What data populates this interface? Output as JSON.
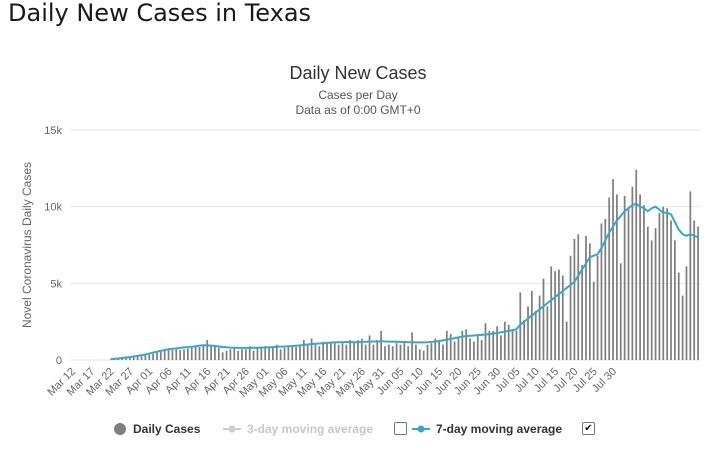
{
  "page": {
    "title": "Daily New Cases in Texas"
  },
  "chart_data": {
    "type": "bar",
    "title": "Daily New Cases",
    "subtitle": "Cases per Day",
    "subtitle2": "Data as of 0:00 GMT+0",
    "ylabel": "Novel Coronavirus Daily Cases",
    "xlabel": "",
    "ylim": [
      0,
      15000
    ],
    "yticks": [
      0,
      5000,
      10000,
      15000
    ],
    "ytick_labels": [
      "0",
      "5k",
      "10k",
      "15k"
    ],
    "xtick_labels": [
      "Mar 12",
      "Mar 17",
      "Mar 22",
      "Mar 27",
      "Apr 01",
      "Apr 06",
      "Apr 11",
      "Apr 16",
      "Apr 21",
      "Apr 26",
      "May 01",
      "May 06",
      "May 11",
      "May 16",
      "May 21",
      "May 26",
      "May 31",
      "Jun 05",
      "Jun 10",
      "Jun 15",
      "Jun 20",
      "Jun 25",
      "Jun 30",
      "Jul 05",
      "Jul 10",
      "Jul 15",
      "Jul 20",
      "Jul 25",
      "Jul 30"
    ],
    "grid": true,
    "legend_position": "bottom",
    "colors": {
      "bars": "#7f7f7f",
      "avg7": "#3aa6c8",
      "avg3": "#cccccc",
      "grid": "#e6e6e6"
    },
    "x_start": "Mar 12",
    "daily_cases": [
      0,
      0,
      0,
      0,
      0,
      0,
      0,
      0,
      0,
      0,
      20,
      40,
      60,
      100,
      120,
      150,
      200,
      230,
      260,
      300,
      350,
      400,
      500,
      550,
      600,
      640,
      650,
      700,
      650,
      700,
      750,
      800,
      900,
      850,
      1000,
      1300,
      900,
      950,
      800,
      500,
      600,
      700,
      750,
      600,
      700,
      700,
      900,
      600,
      800,
      750,
      900,
      800,
      850,
      1000,
      700,
      800,
      900,
      900,
      850,
      950,
      1300,
      1000,
      1400,
      1100,
      900,
      1200,
      1100,
      1100,
      1200,
      1000,
      1100,
      1000,
      1300,
      1100,
      1300,
      1400,
      1000,
      1600,
      1000,
      1300,
      1900,
      900,
      1000,
      900,
      1100,
      1000,
      1100,
      900,
      1800,
      1000,
      700,
      600,
      1000,
      1100,
      1400,
      1200,
      1000,
      1900,
      1700,
      1200,
      1500,
      1900,
      2000,
      1400,
      1200,
      1700,
      1300,
      2400,
      1900,
      1900,
      2200,
      1600,
      2500,
      2300,
      1900,
      1900,
      4400,
      2600,
      3500,
      4500,
      3200,
      4200,
      5300,
      3500,
      6100,
      5800,
      5900,
      5500,
      2500,
      6800,
      7900,
      8200,
      6200,
      8100,
      7600,
      5100,
      6800,
      8900,
      9200,
      10600,
      11800,
      10800,
      6300,
      10700,
      9900,
      11300,
      12400,
      10800,
      10100,
      8700,
      7800,
      8600,
      9600,
      10000,
      9900,
      9100,
      7800,
      5700,
      4200,
      6100,
      11000,
      9100,
      8700
    ],
    "avg7": [
      0,
      0,
      0,
      0,
      0,
      0,
      0,
      0,
      0,
      0,
      60,
      80,
      100,
      130,
      160,
      190,
      230,
      270,
      310,
      360,
      420,
      480,
      540,
      600,
      650,
      700,
      730,
      760,
      790,
      820,
      840,
      860,
      900,
      940,
      960,
      950,
      940,
      920,
      880,
      850,
      830,
      810,
      800,
      790,
      790,
      790,
      790,
      800,
      800,
      810,
      820,
      830,
      840,
      860,
      870,
      880,
      900,
      910,
      930,
      950,
      990,
      1010,
      1040,
      1060,
      1080,
      1090,
      1120,
      1140,
      1150,
      1160,
      1160,
      1170,
      1170,
      1160,
      1160,
      1180,
      1190,
      1200,
      1210,
      1210,
      1220,
      1210,
      1200,
      1200,
      1190,
      1180,
      1170,
      1160,
      1160,
      1150,
      1150,
      1150,
      1160,
      1180,
      1200,
      1240,
      1280,
      1330,
      1370,
      1420,
      1480,
      1530,
      1560,
      1580,
      1600,
      1620,
      1640,
      1660,
      1690,
      1730,
      1760,
      1800,
      1850,
      1900,
      1950,
      2000,
      2300,
      2500,
      2700,
      2900,
      3100,
      3300,
      3500,
      3700,
      3900,
      4100,
      4300,
      4500,
      4700,
      4900,
      5100,
      5500,
      5900,
      6300,
      6700,
      6800,
      6900,
      7300,
      7800,
      8300,
      8700,
      9100,
      9400,
      9700,
      9900,
      10100,
      10200,
      10000,
      9900,
      9700,
      9900,
      10000,
      9800,
      9600,
      9600,
      9500,
      9000,
      8500,
      8200,
      8100,
      8200,
      8100,
      8000
    ]
  },
  "legend": {
    "items": [
      {
        "label": "Daily Cases",
        "color": "#7f7f7f",
        "enabled": true
      },
      {
        "label": "3-day moving average",
        "color": "#cccccc",
        "enabled": false
      },
      {
        "label": "7-day moving average",
        "color": "#3aa6c8",
        "enabled": true
      }
    ]
  }
}
